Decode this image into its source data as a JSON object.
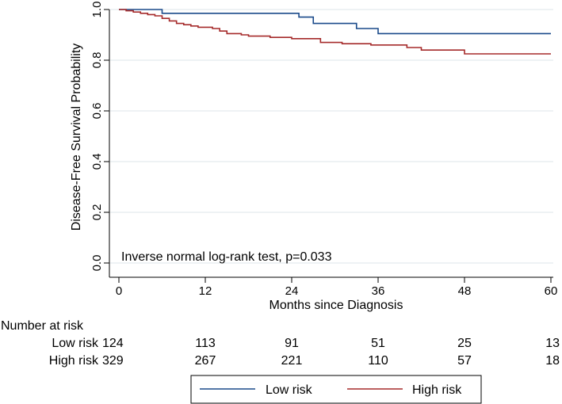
{
  "chart_data": {
    "type": "line",
    "title": "",
    "xlabel": "Months since Diagnosis",
    "ylabel": "Disease-Free Survival Probability",
    "xlim": [
      0,
      60
    ],
    "ylim": [
      0,
      1
    ],
    "x_ticks": [
      "0",
      "12",
      "24",
      "36",
      "48",
      "60"
    ],
    "y_ticks": [
      "0.0",
      "0.2",
      "0.4",
      "0.6",
      "0.8",
      "1.0"
    ],
    "grid": "horizontal",
    "annotation": "Inverse normal log-rank test, p=0.033",
    "colors": {
      "low_risk": "#1a4a8a",
      "high_risk": "#a52a2a",
      "grid": "#dce6ea"
    },
    "series": [
      {
        "name": "Low risk",
        "key": "low",
        "x": [
          0,
          6,
          25,
          27,
          33,
          36,
          60
        ],
        "y": [
          1.0,
          0.985,
          0.97,
          0.945,
          0.925,
          0.905,
          0.905
        ]
      },
      {
        "name": "High risk",
        "key": "high",
        "x": [
          0,
          1,
          2,
          3,
          4,
          5,
          6,
          7,
          8,
          9,
          10,
          11,
          13,
          14,
          15,
          17,
          18,
          21,
          24,
          28,
          31,
          35,
          40,
          42,
          48,
          60
        ],
        "y": [
          1.0,
          0.995,
          0.99,
          0.985,
          0.98,
          0.975,
          0.965,
          0.955,
          0.945,
          0.94,
          0.935,
          0.93,
          0.925,
          0.915,
          0.905,
          0.9,
          0.895,
          0.89,
          0.885,
          0.87,
          0.865,
          0.86,
          0.85,
          0.84,
          0.825,
          0.825
        ]
      }
    ],
    "risk_table": {
      "title": "Number at risk",
      "rows": [
        {
          "label": "Low risk",
          "values": [
            "124",
            "113",
            "91",
            "51",
            "25",
            "13"
          ]
        },
        {
          "label": "High risk",
          "values": [
            "329",
            "267",
            "221",
            "110",
            "57",
            "18"
          ]
        }
      ]
    },
    "legend": {
      "placement": "bottom",
      "entries": [
        "Low risk",
        "High risk"
      ]
    }
  }
}
